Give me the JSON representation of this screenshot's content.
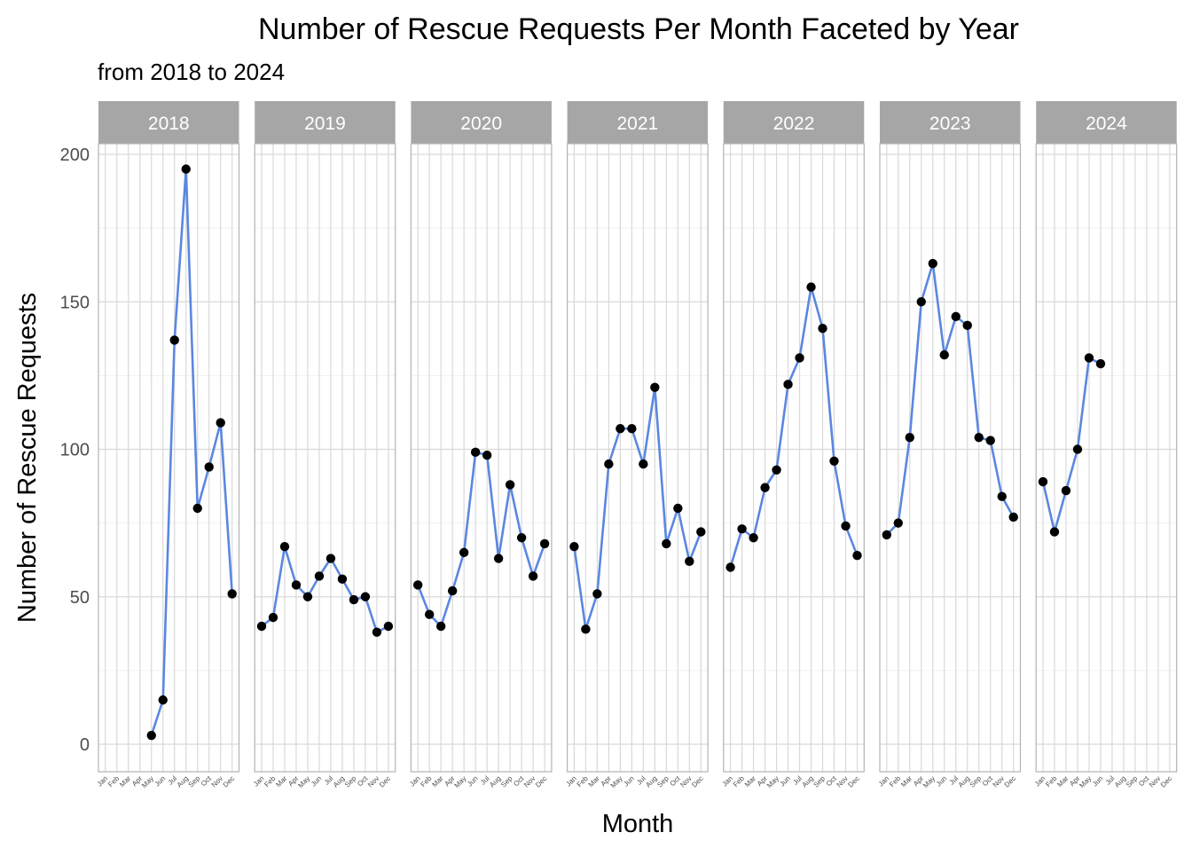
{
  "chart_data": {
    "type": "line",
    "title": "Number of Rescue Requests Per Month Faceted by Year",
    "subtitle": "from 2018 to 2024",
    "xlabel": "Month",
    "ylabel": "Number of Rescue Requests",
    "ylim": [
      -10,
      200
    ],
    "yticks": [
      0,
      50,
      100,
      150,
      200
    ],
    "categories": [
      "Jan",
      "Feb",
      "Mar",
      "Apr",
      "May",
      "Jun",
      "Jul",
      "Aug",
      "Sep",
      "Oct",
      "Nov",
      "Dec"
    ],
    "grid": true,
    "line_color": "#5b87e0",
    "point_color": "#000000",
    "strip_color": "#a6a6a6",
    "facets": [
      {
        "label": "2018",
        "values": [
          null,
          null,
          null,
          null,
          3,
          15,
          137,
          195,
          80,
          94,
          109,
          51
        ]
      },
      {
        "label": "2019",
        "values": [
          40,
          43,
          67,
          54,
          50,
          57,
          63,
          56,
          49,
          50,
          38,
          40
        ]
      },
      {
        "label": "2020",
        "values": [
          54,
          44,
          40,
          52,
          65,
          99,
          98,
          63,
          88,
          70,
          57,
          68
        ]
      },
      {
        "label": "2021",
        "values": [
          67,
          39,
          51,
          95,
          107,
          107,
          95,
          121,
          68,
          80,
          62,
          72
        ]
      },
      {
        "label": "2022",
        "values": [
          60,
          73,
          70,
          87,
          93,
          122,
          131,
          155,
          141,
          96,
          74,
          64
        ]
      },
      {
        "label": "2023",
        "values": [
          71,
          75,
          104,
          150,
          163,
          132,
          145,
          142,
          104,
          103,
          84,
          77
        ]
      },
      {
        "label": "2024",
        "values": [
          89,
          72,
          86,
          100,
          131,
          129,
          null,
          null,
          null,
          null,
          null,
          null
        ]
      }
    ]
  }
}
